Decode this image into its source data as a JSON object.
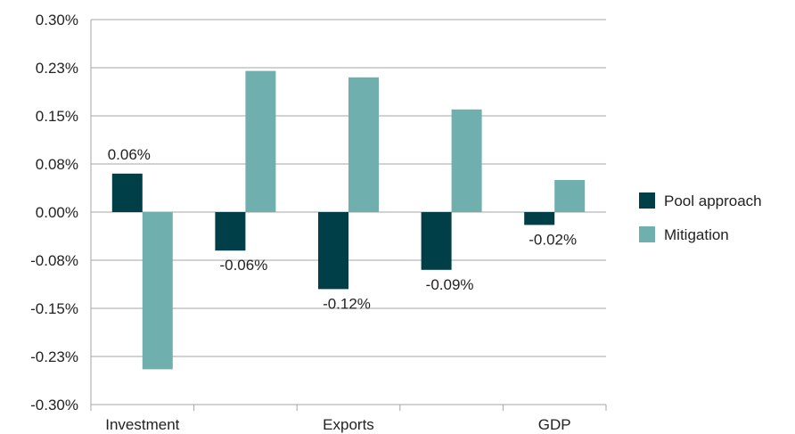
{
  "chart_data": {
    "type": "bar",
    "categories": [
      "Investment",
      "",
      "Exports",
      "",
      "GDP"
    ],
    "series": [
      {
        "name": "Pool approach",
        "values": [
          0.06,
          -0.06,
          -0.12,
          -0.09,
          -0.02
        ],
        "color": "#003f47"
      },
      {
        "name": "Mitigation",
        "values": [
          -0.245,
          0.22,
          0.21,
          0.16,
          0.05
        ],
        "color": "#6fb0ae"
      }
    ],
    "data_labels": [
      "0.06%",
      "-0.06%",
      "-0.12%",
      "-0.09%",
      "-0.02%"
    ],
    "y_ticks": [
      "0.30%",
      "0.23%",
      "0.15%",
      "0.08%",
      "0.00%",
      "-0.08%",
      "-0.15%",
      "-0.23%",
      "-0.30%"
    ],
    "ylim": [
      -0.3,
      0.3
    ],
    "grid": true,
    "legend_position": "right"
  }
}
